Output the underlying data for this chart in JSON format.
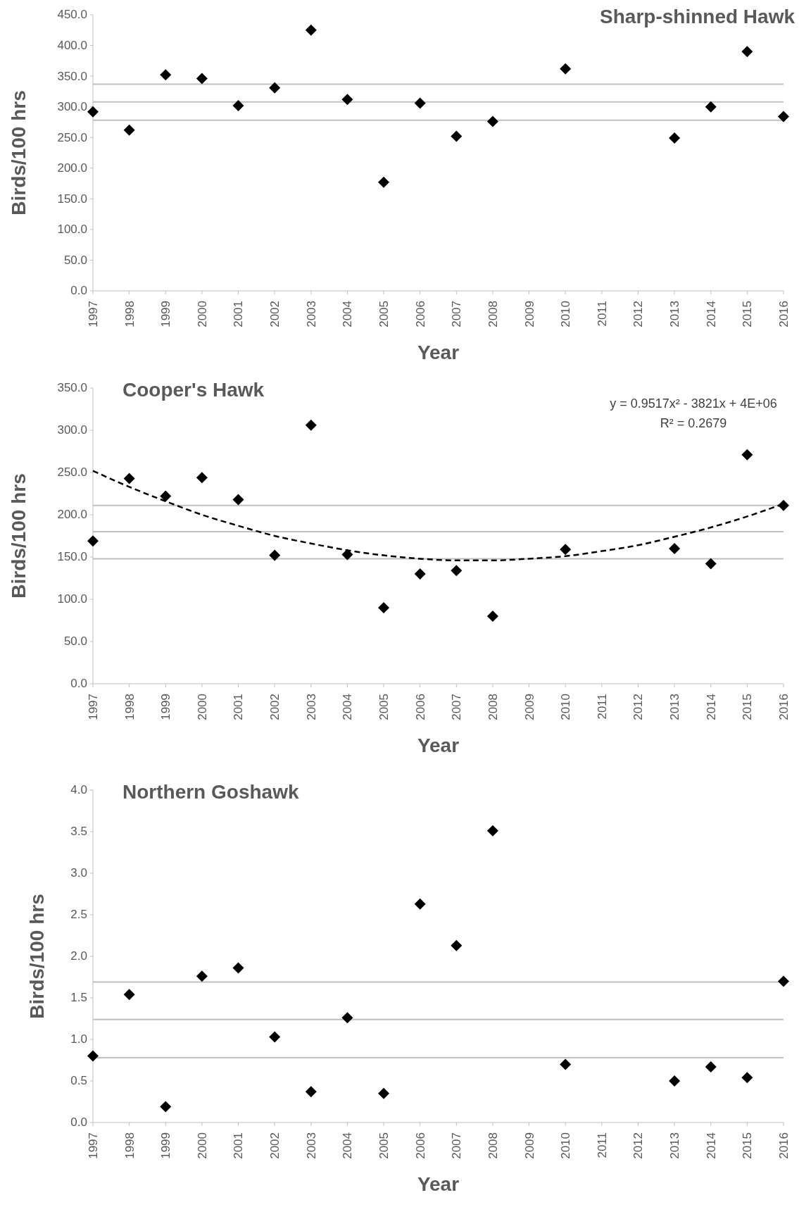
{
  "chart_data": [
    {
      "type": "scatter",
      "title": "Sharp-shinned Hawk",
      "xlabel": "Year",
      "ylabel": "Birds/100 hrs",
      "categories": [
        "1997",
        "1998",
        "1999",
        "2000",
        "2001",
        "2002",
        "2003",
        "2004",
        "2005",
        "2006",
        "2007",
        "2008",
        "2009",
        "2010",
        "2011",
        "2012",
        "2013",
        "2014",
        "2015",
        "2016"
      ],
      "series": [
        {
          "color": "#000000",
          "marker": "diamond",
          "values": [
            292,
            262,
            352,
            346,
            302,
            331,
            425,
            312,
            177,
            306,
            252,
            276,
            null,
            362,
            null,
            null,
            249,
            300,
            390,
            284
          ]
        }
      ],
      "ylim": [
        0,
        450
      ],
      "yticks": [
        {
          "value": 0,
          "label": "0.0"
        },
        {
          "value": 50,
          "label": "50.0"
        },
        {
          "value": 100,
          "label": "100.0"
        },
        {
          "value": 150,
          "label": "150.0"
        },
        {
          "value": 200,
          "label": "200.0"
        },
        {
          "value": 250,
          "label": "250.0"
        },
        {
          "value": 300,
          "label": "300.0"
        },
        {
          "value": 350,
          "label": "350.0"
        },
        {
          "value": 400,
          "label": "400.0"
        },
        {
          "value": 450,
          "label": "450.0"
        }
      ],
      "ref_lines": [
        {
          "axis": "y",
          "value": 337,
          "color": "#bfbfbf"
        },
        {
          "axis": "y",
          "value": 308,
          "color": "#bfbfbf"
        },
        {
          "axis": "y",
          "value": 278,
          "color": "#bfbfbf"
        }
      ]
    },
    {
      "type": "scatter",
      "title": "Cooper's Hawk",
      "xlabel": "Year",
      "ylabel": "Birds/100 hrs",
      "categories": [
        "1997",
        "1998",
        "1999",
        "2000",
        "2001",
        "2002",
        "2003",
        "2004",
        "2005",
        "2006",
        "2007",
        "2008",
        "2009",
        "2010",
        "2011",
        "2012",
        "2013",
        "2014",
        "2015",
        "2016"
      ],
      "series": [
        {
          "color": "#000000",
          "marker": "diamond",
          "values": [
            169,
            243,
            222,
            244,
            218,
            152,
            306,
            153,
            90,
            130,
            134,
            80,
            null,
            159,
            null,
            null,
            160,
            142,
            271,
            211
          ]
        },
        {
          "type": "line",
          "color": "#000000",
          "line_style": "dashed",
          "marker": "none",
          "values": [
            252,
            233,
            216,
            200,
            187,
            175,
            166,
            158,
            152,
            148,
            146,
            146,
            148,
            151,
            157,
            164,
            174,
            185,
            198,
            213
          ]
        }
      ],
      "ylim": [
        0,
        350
      ],
      "yticks": [
        {
          "value": 0,
          "label": "0.0"
        },
        {
          "value": 50,
          "label": "50.0"
        },
        {
          "value": 100,
          "label": "100.0"
        },
        {
          "value": 150,
          "label": "150.0"
        },
        {
          "value": 200,
          "label": "200.0"
        },
        {
          "value": 250,
          "label": "250.0"
        },
        {
          "value": 300,
          "label": "300.0"
        },
        {
          "value": 350,
          "label": "350.0"
        }
      ],
      "ref_lines": [
        {
          "axis": "y",
          "value": 211,
          "color": "#bfbfbf"
        },
        {
          "axis": "y",
          "value": 180,
          "color": "#bfbfbf"
        },
        {
          "axis": "y",
          "value": 148,
          "color": "#bfbfbf"
        }
      ],
      "annotations": [
        "y = 0.9517x² - 3821x + 4E+06",
        "R² = 0.2679"
      ]
    },
    {
      "type": "scatter",
      "title": "Northern Goshawk",
      "xlabel": "Year",
      "ylabel": "Birds/100 hrs",
      "categories": [
        "1997",
        "1998",
        "1999",
        "2000",
        "2001",
        "2002",
        "2003",
        "2004",
        "2005",
        "2006",
        "2007",
        "2008",
        "2009",
        "2010",
        "2011",
        "2012",
        "2013",
        "2014",
        "2015",
        "2016"
      ],
      "series": [
        {
          "color": "#000000",
          "marker": "diamond",
          "values": [
            0.8,
            1.54,
            0.19,
            1.76,
            1.86,
            1.03,
            0.37,
            1.26,
            0.35,
            2.63,
            2.13,
            3.51,
            null,
            0.7,
            null,
            null,
            0.5,
            0.67,
            0.54,
            1.7
          ]
        }
      ],
      "ylim": [
        0,
        4
      ],
      "yticks": [
        {
          "value": 0,
          "label": "0.0"
        },
        {
          "value": 0.5,
          "label": "0.5"
        },
        {
          "value": 1,
          "label": "1.0"
        },
        {
          "value": 1.5,
          "label": "1.5"
        },
        {
          "value": 2,
          "label": "2.0"
        },
        {
          "value": 2.5,
          "label": "2.5"
        },
        {
          "value": 3,
          "label": "3.0"
        },
        {
          "value": 3.5,
          "label": "3.5"
        },
        {
          "value": 4,
          "label": "4.0"
        }
      ],
      "ref_lines": [
        {
          "axis": "y",
          "value": 1.69,
          "color": "#bfbfbf"
        },
        {
          "axis": "y",
          "value": 1.24,
          "color": "#bfbfbf"
        },
        {
          "axis": "y",
          "value": 0.78,
          "color": "#bfbfbf"
        }
      ]
    }
  ]
}
